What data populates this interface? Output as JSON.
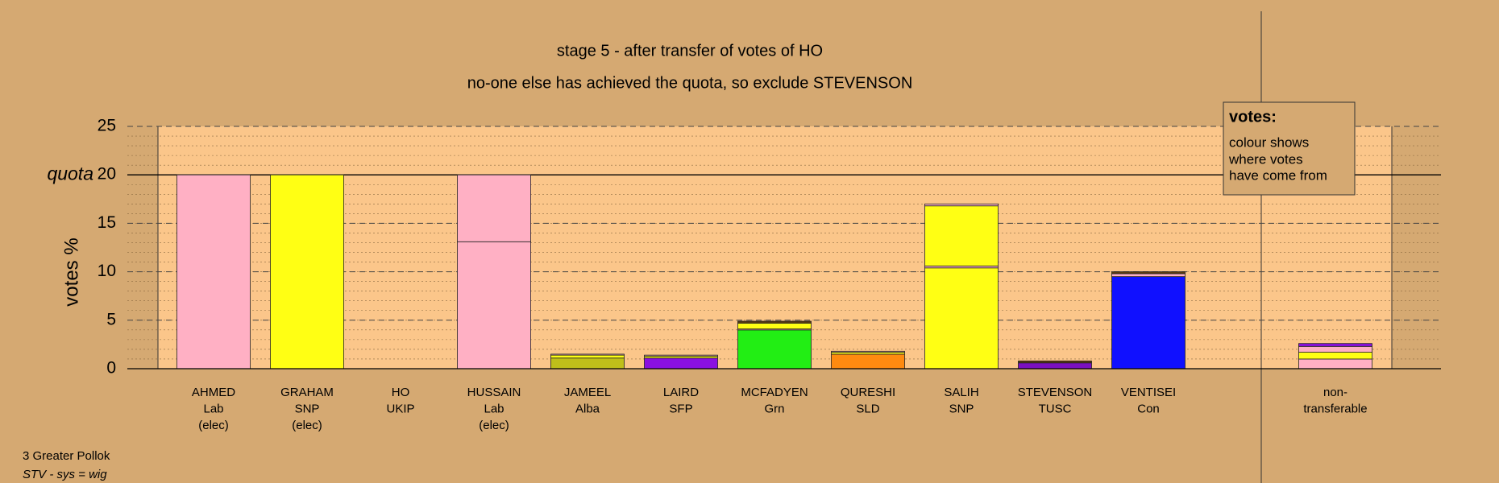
{
  "chart_data": {
    "type": "stacked_bar",
    "title": "stage 5 - after transfer of votes of HO",
    "subtitle": "no-one else has achieved the quota, so exclude STEVENSON",
    "y_label": "votes %",
    "ylim": [
      0,
      25
    ],
    "yticks": [
      0,
      5,
      10,
      15,
      20,
      25
    ],
    "minor_step": 1,
    "quota": 20,
    "quota_label": "quota",
    "bars": [
      {
        "label": [
          "AHMED",
          "Lab",
          "(elec)"
        ],
        "segments": [
          {
            "value": 20,
            "color": "#ffb0c4"
          }
        ]
      },
      {
        "label": [
          "GRAHAM",
          "SNP",
          "(elec)"
        ],
        "segments": [
          {
            "value": 20,
            "color": "#ffff14"
          }
        ]
      },
      {
        "label": [
          "HO",
          "UKIP"
        ],
        "segments": []
      },
      {
        "label": [
          "HUSSAIN",
          "Lab",
          "(elec)"
        ],
        "segments": [
          {
            "value": 13.1,
            "color": "#ffb0c4"
          },
          {
            "value": 6.9,
            "color": "#ffb0c4"
          }
        ]
      },
      {
        "label": [
          "JAMEEL",
          "Alba"
        ],
        "segments": [
          {
            "value": 1.1,
            "color": "#bfbf1a"
          },
          {
            "value": 0.3,
            "color": "#ffff14"
          },
          {
            "value": 0.1,
            "color": "#ffb0c4"
          }
        ]
      },
      {
        "label": [
          "LAIRD",
          "SFP"
        ],
        "segments": [
          {
            "value": 1.1,
            "color": "#8a10e0"
          },
          {
            "value": 0.2,
            "color": "#ffff14"
          },
          {
            "value": 0.1,
            "color": "#ffb0c4"
          }
        ]
      },
      {
        "label": [
          "MCFADYEN",
          "Grn"
        ],
        "segments": [
          {
            "value": 4.0,
            "color": "#22ee14"
          },
          {
            "value": 0.1,
            "color": "#ffb0c4"
          },
          {
            "value": 0.6,
            "color": "#ffff14"
          },
          {
            "value": 0.2,
            "color": "#5a3a10"
          }
        ]
      },
      {
        "label": [
          "QURESHI",
          "SLD"
        ],
        "segments": [
          {
            "value": 1.5,
            "color": "#ff8a10"
          },
          {
            "value": 0.2,
            "color": "#ffff14"
          },
          {
            "value": 0.1,
            "color": "#ffb0c4"
          }
        ]
      },
      {
        "label": [
          "SALIH",
          "SNP"
        ],
        "segments": [
          {
            "value": 10.4,
            "color": "#ffff14"
          },
          {
            "value": 0.2,
            "color": "#ffb0c4"
          },
          {
            "value": 6.2,
            "color": "#ffff14"
          },
          {
            "value": 0.2,
            "color": "#ffb0c4"
          }
        ]
      },
      {
        "label": [
          "STEVENSON",
          "TUSC"
        ],
        "segments": [
          {
            "value": 0.6,
            "color": "#7a10c0"
          },
          {
            "value": 0.2,
            "color": "#5a3a10"
          }
        ]
      },
      {
        "label": [
          "VENTISEI",
          "Con"
        ],
        "segments": [
          {
            "value": 9.5,
            "color": "#1010ff"
          },
          {
            "value": 0.3,
            "color": "#ffb0c4"
          },
          {
            "value": 0.2,
            "color": "#5a3a10"
          }
        ]
      }
    ],
    "non_transferable": {
      "label": [
        "non-",
        "transferable"
      ],
      "segments": [
        {
          "value": 1.0,
          "color": "#ffb0c4"
        },
        {
          "value": 0.7,
          "color": "#ffff14"
        },
        {
          "value": 0.6,
          "color": "#ffb0c4"
        },
        {
          "value": 0.3,
          "color": "#8a10e0"
        }
      ]
    },
    "info_box": {
      "title": "votes:",
      "lines": [
        "colour shows",
        "where votes",
        "have come from"
      ]
    },
    "footer": {
      "constituency": "3 Greater Pollok",
      "system": "STV - sys = wig"
    }
  }
}
